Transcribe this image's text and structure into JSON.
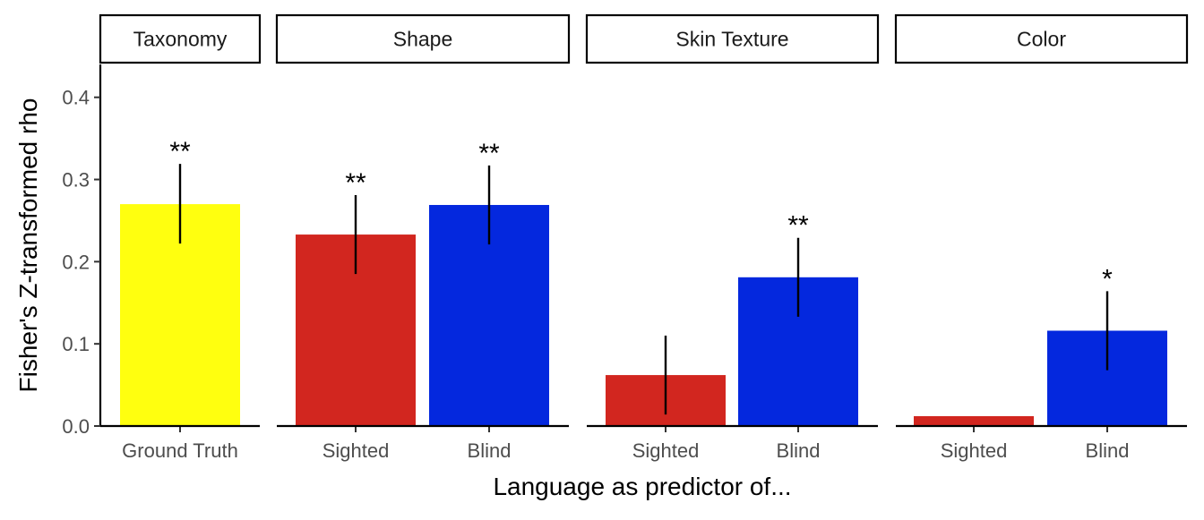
{
  "chart_data": {
    "type": "bar",
    "xlabel": "Language as predictor of...",
    "ylabel": "Fisher's Z-transformed rho",
    "ylim": [
      0,
      0.44
    ],
    "yticks": [
      0.0,
      0.1,
      0.2,
      0.3,
      0.4
    ],
    "ytick_labels": [
      "0.0",
      "0.1",
      "0.2",
      "0.3",
      "0.4"
    ],
    "grid": false,
    "colors": {
      "ground_truth": "#ffff0f",
      "sighted": "#d2261f",
      "blind": "#0428de"
    },
    "panels": [
      {
        "title": "Taxonomy",
        "bars": [
          {
            "category": "Ground Truth",
            "value": 0.27,
            "err_low": 0.222,
            "err_high": 0.319,
            "sig": "**",
            "color_key": "ground_truth"
          }
        ]
      },
      {
        "title": "Shape",
        "bars": [
          {
            "category": "Sighted",
            "value": 0.233,
            "err_low": 0.185,
            "err_high": 0.281,
            "sig": "**",
            "color_key": "sighted"
          },
          {
            "category": "Blind",
            "value": 0.269,
            "err_low": 0.221,
            "err_high": 0.317,
            "sig": "**",
            "color_key": "blind"
          }
        ]
      },
      {
        "title": "Skin Texture",
        "bars": [
          {
            "category": "Sighted",
            "value": 0.062,
            "err_low": 0.014,
            "err_high": 0.11,
            "sig": "",
            "color_key": "sighted"
          },
          {
            "category": "Blind",
            "value": 0.181,
            "err_low": 0.133,
            "err_high": 0.229,
            "sig": "**",
            "color_key": "blind"
          }
        ]
      },
      {
        "title": "Color",
        "bars": [
          {
            "category": "Sighted",
            "value": 0.012,
            "err_low": null,
            "err_high": null,
            "sig": "",
            "color_key": "sighted"
          },
          {
            "category": "Blind",
            "value": 0.116,
            "err_low": 0.068,
            "err_high": 0.164,
            "sig": "*",
            "color_key": "blind"
          }
        ]
      }
    ]
  }
}
